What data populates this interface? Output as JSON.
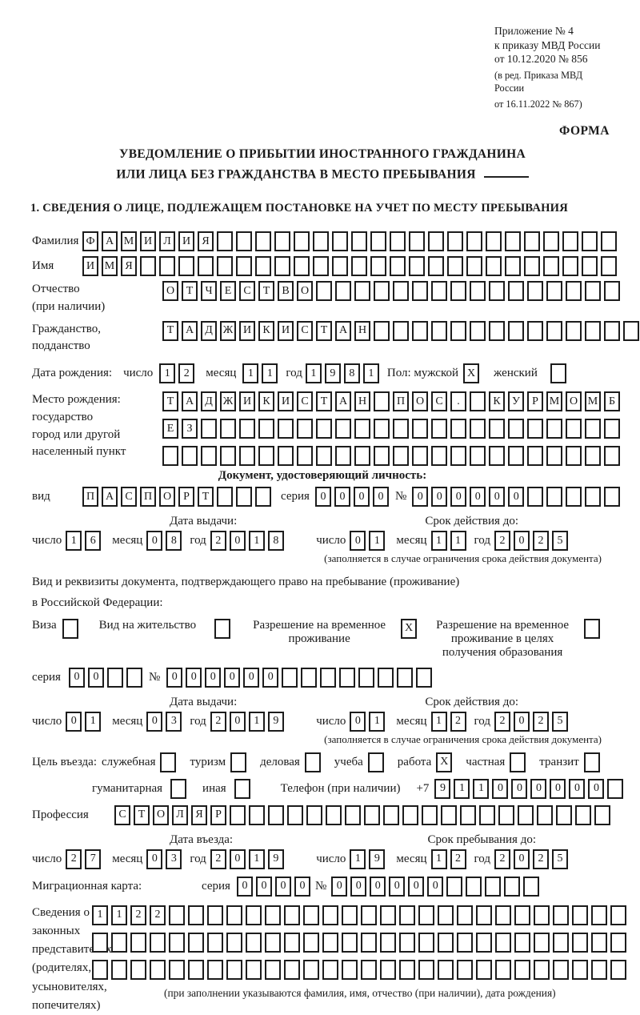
{
  "meta": {
    "annex_line1": "Приложение № 4",
    "annex_line2": "к приказу МВД России",
    "annex_line3": "от 10.12.2020 № 856",
    "edition_line1": "(в ред. Приказа МВД России",
    "edition_line2": "от 16.11.2022 № 867)",
    "form_label": "ФОРМА"
  },
  "title": {
    "line1": "УВЕДОМЛЕНИЕ О ПРИБЫТИИ ИНОСТРАННОГО ГРАЖДАНИНА",
    "line2": "ИЛИ ЛИЦА БЕЗ ГРАЖДАНСТВА В МЕСТО ПРЕБЫВАНИЯ"
  },
  "section1_heading": "1. СВЕДЕНИЯ О ЛИЦЕ, ПОДЛЕЖАЩЕМ ПОСТАНОВКЕ НА УЧЕТ ПО МЕСТУ ПРЕБЫВАНИЯ",
  "labels": {
    "day": "число",
    "month": "месяц",
    "year": "год",
    "seria": "серия",
    "num": "№",
    "issue_date": "Дата выдачи:",
    "valid_until": "Срок действия до:",
    "restriction_note": "(заполняется в случае ограничения срока действия документа)",
    "entry_date": "Дата въезда:",
    "stay_until": "Срок пребывания до:"
  },
  "surname": {
    "label": "Фамилия",
    "cells": {
      "chars": "ФАМИЛИЯ",
      "len": 28
    }
  },
  "firstname": {
    "label": "Имя",
    "cells": {
      "chars": "ИМЯ",
      "len": 28
    }
  },
  "patronymic": {
    "label1": "Отчество",
    "label2": "(при наличии)",
    "cells": {
      "chars": "ОТЧЕСТВО",
      "len": 24
    }
  },
  "citizenship": {
    "label1": "Гражданство,",
    "label2": "подданство",
    "cells": {
      "chars": "ТАДЖИКИСТАН",
      "len": 25
    }
  },
  "birth": {
    "label": "Дата рождения:",
    "day": {
      "chars": "12",
      "len": 2
    },
    "month": {
      "chars": "11",
      "len": 2
    },
    "year": {
      "chars": "1981",
      "len": 4
    },
    "sex_label": "Пол: мужской",
    "male": {
      "chars": "X",
      "len": 1
    },
    "female_label": "женский",
    "female": {
      "chars": "",
      "len": 1
    }
  },
  "birthplace": {
    "label1": "Место рождения:",
    "label2": "государство",
    "label3": "город или другой",
    "label4": "населенный пункт",
    "row1": {
      "chars": "ТАДЖИКИСТАН ПОС. КУРМОМБ",
      "len": 24
    },
    "row2": {
      "chars": "ЕЗ",
      "len": 24
    },
    "row3": {
      "chars": "",
      "len": 24
    }
  },
  "iddoc": {
    "heading": "Документ, удостоверяющий личность:",
    "vid_label": "вид",
    "vid": {
      "chars": "ПАСПОРТ",
      "len": 10
    },
    "seria": {
      "chars": "0000",
      "len": 4
    },
    "number": {
      "chars": "000000",
      "len": 11
    },
    "issue": {
      "day": {
        "chars": "16",
        "len": 2
      },
      "month": {
        "chars": "08",
        "len": 2
      },
      "year": {
        "chars": "2018",
        "len": 4
      }
    },
    "valid": {
      "day": {
        "chars": "01",
        "len": 2
      },
      "month": {
        "chars": "11",
        "len": 2
      },
      "year": {
        "chars": "2025",
        "len": 4
      }
    }
  },
  "residency": {
    "intro1": "Вид и реквизиты документа, подтверждающего право на пребывание (проживание)",
    "intro2": "в Российской Федерации:",
    "visa_label": "Виза",
    "visa": {
      "chars": "",
      "len": 1
    },
    "permit_label": "Вид на жительство",
    "permit": {
      "chars": "",
      "len": 1
    },
    "temp_label": "Разрешение на временное\nпроживание",
    "temp": {
      "chars": "X",
      "len": 1
    },
    "edu_label": "Разрешение на временное\nпроживание в целях\nполучения образования",
    "edu": {
      "chars": "",
      "len": 1
    },
    "seria": {
      "chars": "00",
      "len": 4
    },
    "number": {
      "chars": "000000",
      "len": 14
    },
    "issue": {
      "day": {
        "chars": "01",
        "len": 2
      },
      "month": {
        "chars": "03",
        "len": 2
      },
      "year": {
        "chars": "2019",
        "len": 4
      }
    },
    "valid": {
      "day": {
        "chars": "01",
        "len": 2
      },
      "month": {
        "chars": "12",
        "len": 2
      },
      "year": {
        "chars": "2025",
        "len": 4
      }
    }
  },
  "purpose": {
    "label": "Цель въезда:",
    "official_label": "служебная",
    "official": {
      "chars": "",
      "len": 1
    },
    "tourism_label": "туризм",
    "tourism": {
      "chars": "",
      "len": 1
    },
    "business_label": "деловая",
    "business": {
      "chars": "",
      "len": 1
    },
    "study_label": "учеба",
    "study": {
      "chars": "",
      "len": 1
    },
    "work_label": "работа",
    "work": {
      "chars": "X",
      "len": 1
    },
    "private_label": "частная",
    "private": {
      "chars": "",
      "len": 1
    },
    "transit_label": "транзит",
    "transit": {
      "chars": "",
      "len": 1
    },
    "humanitarian_label": "гуманитарная",
    "humanitarian": {
      "chars": "",
      "len": 1
    },
    "other_label": "иная",
    "other": {
      "chars": "",
      "len": 1
    }
  },
  "phone": {
    "label": "Телефон (при наличии)",
    "prefix": "+7",
    "cells": {
      "chars": "911000000",
      "len": 10
    }
  },
  "profession": {
    "label": "Профессия",
    "cells": {
      "chars": "СТОЛЯР",
      "len": 26
    }
  },
  "entry": {
    "date": {
      "day": {
        "chars": "27",
        "len": 2
      },
      "month": {
        "chars": "03",
        "len": 2
      },
      "year": {
        "chars": "2019",
        "len": 4
      }
    },
    "stay": {
      "day": {
        "chars": "19",
        "len": 2
      },
      "month": {
        "chars": "12",
        "len": 2
      },
      "year": {
        "chars": "2025",
        "len": 4
      }
    }
  },
  "migration_card": {
    "label": "Миграционная карта:",
    "seria": {
      "chars": "0000",
      "len": 4
    },
    "number": {
      "chars": "000000",
      "len": 11
    }
  },
  "representatives": {
    "label1": "Сведения о",
    "label2": "законных",
    "label3": "представителях",
    "label4": "(родителях,",
    "label5": "усыновителях,",
    "label6": "попечителях)",
    "row1": {
      "chars": "1122",
      "len": 28
    },
    "row2": {
      "chars": "",
      "len": 28
    },
    "row3": {
      "chars": "",
      "len": 28
    },
    "note": "(при заполнении указываются фамилия, имя, отчество (при наличии), дата рождения)"
  }
}
